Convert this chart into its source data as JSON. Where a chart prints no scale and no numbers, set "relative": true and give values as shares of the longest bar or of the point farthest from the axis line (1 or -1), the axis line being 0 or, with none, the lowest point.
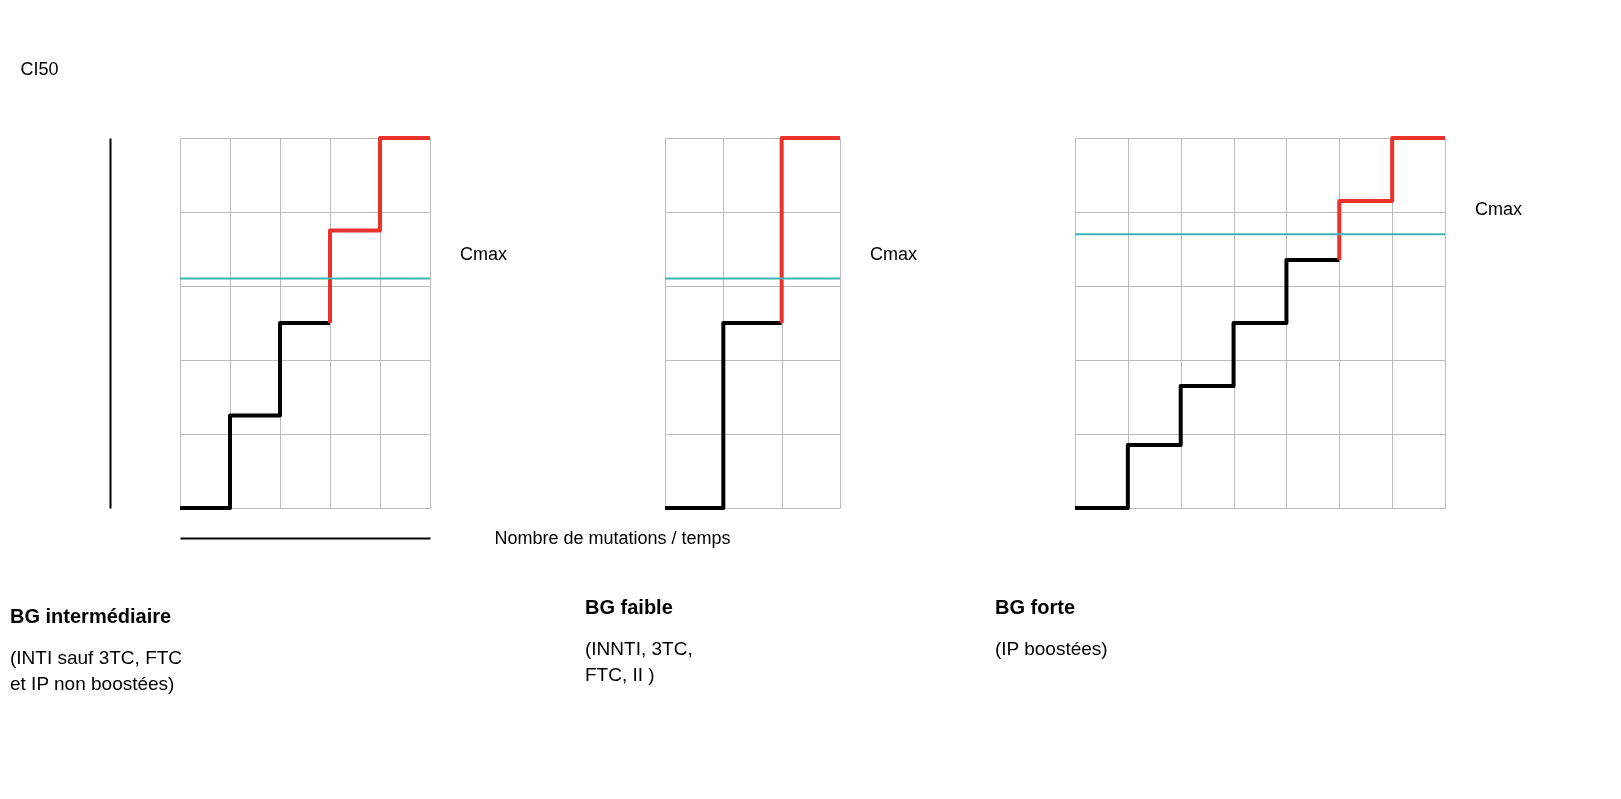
{
  "chart_data": [
    {
      "type": "step",
      "title": "BG intermédiaire",
      "subtitle": "(INTI sauf 3TC, FTC\net IP non boostées)",
      "xlabel": "Nombre de mutations / temps",
      "ylabel": "CI50",
      "relative": true,
      "grid": true,
      "tick_labels": false,
      "categories": [
        null,
        null,
        null,
        null,
        null,
        null
      ],
      "series": [
        {
          "color": "#000000",
          "values": [
            0,
            0,
            0.25,
            0.5,
            null,
            null
          ]
        },
        {
          "color": "#e8322a",
          "values": [
            null,
            null,
            null,
            0.5,
            0.75,
            1
          ]
        }
      ],
      "ref_lines": [
        {
          "axis": "y",
          "value": 0.62,
          "label": "Cmax",
          "color": "#3cb4b4"
        }
      ]
    },
    {
      "type": "step",
      "title": "BG faible",
      "subtitle": "(INNTI, 3TC,\nFTC, II )",
      "relative": true,
      "grid": true,
      "tick_labels": false,
      "categories": [
        null,
        null,
        null,
        null
      ],
      "series": [
        {
          "color": "#000000",
          "values": [
            0,
            0,
            0.5,
            null
          ]
        },
        {
          "color": "#e8322a",
          "values": [
            null,
            null,
            0.5,
            1
          ]
        }
      ],
      "ref_lines": [
        {
          "axis": "y",
          "value": 0.62,
          "label": "Cmax",
          "color": "#3cb4b4"
        }
      ]
    },
    {
      "type": "step",
      "title": "BG forte",
      "subtitle": "(IP boostées)",
      "relative": true,
      "grid": true,
      "tick_labels": false,
      "categories": [
        null,
        null,
        null,
        null,
        null,
        null,
        null,
        null
      ],
      "series": [
        {
          "color": "#000000",
          "values": [
            0,
            0,
            0.17,
            0.33,
            0.5,
            0.67,
            null,
            null
          ]
        },
        {
          "color": "#e8322a",
          "values": [
            null,
            null,
            null,
            null,
            null,
            0.67,
            0.83,
            1
          ]
        }
      ],
      "ref_lines": [
        {
          "axis": "y",
          "value": 0.74,
          "label": "Cmax",
          "color": "#3cb4b4"
        }
      ]
    }
  ]
}
